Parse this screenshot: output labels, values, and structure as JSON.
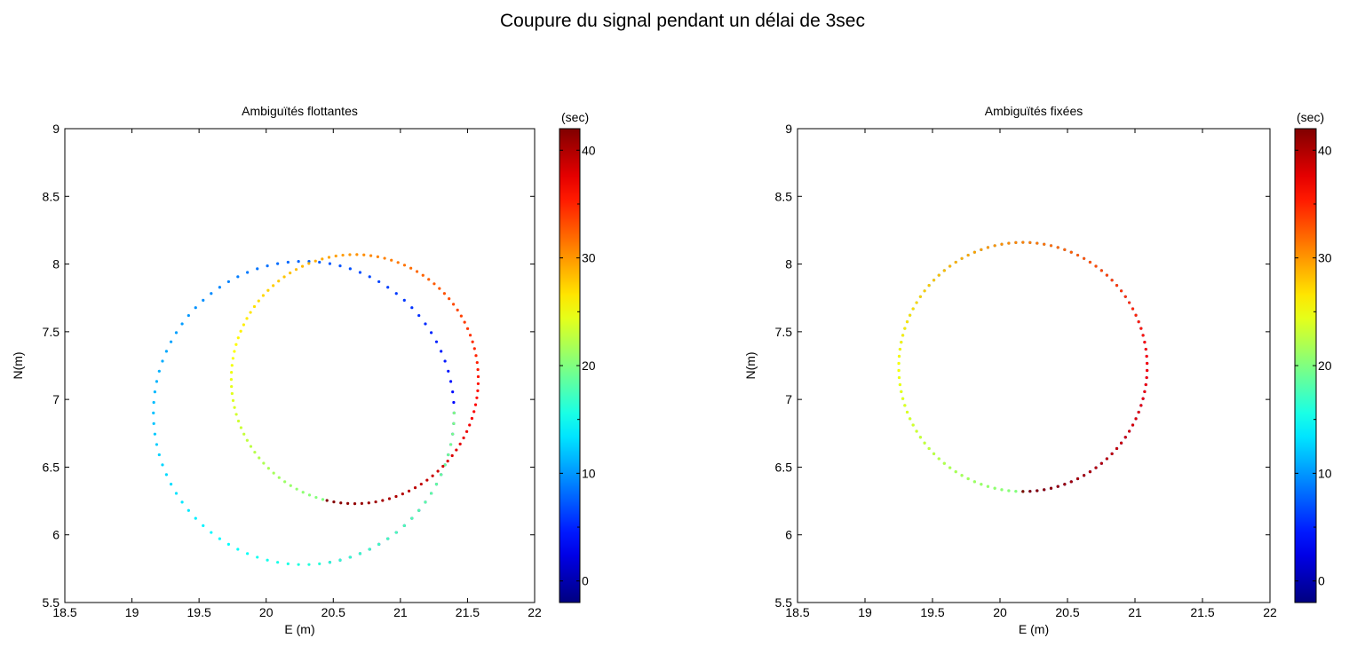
{
  "figure_title": "Coupure du signal pendant un délai de 3sec",
  "chart_data": [
    {
      "type": "scatter",
      "title": "Ambiguïtés flottantes",
      "xlabel": "E (m)",
      "ylabel": "N(m)",
      "xlim": [
        18.5,
        22
      ],
      "ylim": [
        5.5,
        9
      ],
      "xticks": [
        "18.5",
        "19",
        "19.5",
        "20",
        "20.5",
        "21",
        "21.5",
        "22"
      ],
      "yticks": [
        "5.5",
        "6",
        "6.5",
        "7",
        "7.5",
        "8",
        "8.5",
        "9"
      ],
      "grid": false,
      "colormap": "jet",
      "color_variable": "time (sec)",
      "clim": [
        -2,
        42
      ],
      "colorbar_label": "(sec)",
      "colorbar_ticks": [
        "0",
        "10",
        "20",
        "30",
        "40"
      ],
      "series": [
        {
          "description_hidden": true,
          "segments": [
            {
              "kind": "arc",
              "cx": 20.28,
              "cy": 6.9,
              "r": 1.12,
              "a0": -80,
              "a1": 360,
              "t0": 0,
              "t1": 20
            },
            {
              "kind": "arc",
              "cx": 20.66,
              "cy": 7.15,
              "r": 0.92,
              "a0": -105,
              "a1": -463,
              "t0": 20,
              "t1": 42
            }
          ]
        }
      ],
      "points_sample": [
        {
          "x": 20.12,
          "y": 5.92,
          "t": 0
        },
        {
          "x": 21.0,
          "y": 7.0,
          "t": 4
        },
        {
          "x": 20.12,
          "y": 7.76,
          "t": 9
        },
        {
          "x": 19.2,
          "y": 6.9,
          "t": 14
        },
        {
          "x": 19.58,
          "y": 6.1,
          "t": 17
        },
        {
          "x": 20.9,
          "y": 6.25,
          "t": 24
        },
        {
          "x": 21.57,
          "y": 7.15,
          "t": 25
        },
        {
          "x": 20.66,
          "y": 8.07,
          "t": 27
        },
        {
          "x": 19.74,
          "y": 7.15,
          "t": 33
        },
        {
          "x": 20.66,
          "y": 6.23,
          "t": 42
        }
      ]
    },
    {
      "type": "scatter",
      "title": "Ambiguïtés fixées",
      "xlabel": "E (m)",
      "ylabel": "N(m)",
      "xlim": [
        18.5,
        22
      ],
      "ylim": [
        5.5,
        9
      ],
      "xticks": [
        "18.5",
        "19",
        "19.5",
        "20",
        "20.5",
        "21",
        "21.5",
        "22"
      ],
      "yticks": [
        "5.5",
        "6",
        "6.5",
        "7",
        "7.5",
        "8",
        "8.5",
        "9"
      ],
      "grid": false,
      "colormap": "jet",
      "color_variable": "time (sec)",
      "clim": [
        -2,
        42
      ],
      "colorbar_label": "(sec)",
      "colorbar_ticks": [
        "0",
        "10",
        "20",
        "30",
        "40"
      ],
      "series": [
        {
          "segments": [
            {
              "kind": "arc",
              "cx": 20.17,
              "cy": 7.24,
              "r": 0.92,
              "a0": -90,
              "a1": 270,
              "t0": 0,
              "t1": 20
            },
            {
              "kind": "arc",
              "cx": 20.17,
              "cy": 7.24,
              "r": 0.92,
              "a0": 270,
              "a1": -90,
              "t0": 20,
              "t1": 42
            }
          ]
        }
      ],
      "points_sample": [
        {
          "x": 20.17,
          "y": 6.32,
          "t": 0
        },
        {
          "x": 21.09,
          "y": 7.24,
          "t": 5
        },
        {
          "x": 20.17,
          "y": 8.16,
          "t": 10
        },
        {
          "x": 19.25,
          "y": 7.24,
          "t": 15
        },
        {
          "x": 19.75,
          "y": 6.4,
          "t": 25
        },
        {
          "x": 21.0,
          "y": 6.75,
          "t": 28
        },
        {
          "x": 20.7,
          "y": 8.05,
          "t": 32
        },
        {
          "x": 19.3,
          "y": 7.5,
          "t": 38
        },
        {
          "x": 20.17,
          "y": 6.32,
          "t": 42
        }
      ]
    }
  ]
}
